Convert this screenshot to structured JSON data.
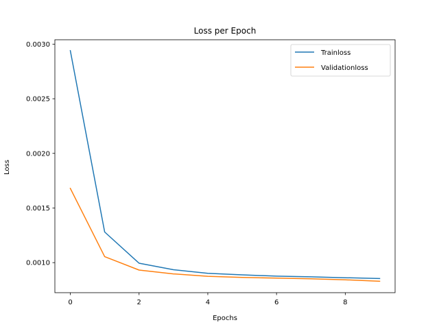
{
  "chart_data": {
    "type": "line",
    "title": "Loss per Epoch",
    "xlabel": "Epochs",
    "ylabel": "Loss",
    "xlim": [
      -0.45,
      9.45
    ],
    "ylim": [
      0.000725,
      0.00304
    ],
    "xticks": [
      0,
      2,
      4,
      6,
      8
    ],
    "xtick_labels": [
      "0",
      "2",
      "4",
      "6",
      "8"
    ],
    "yticks": [
      0.001,
      0.0015,
      0.002,
      0.0025,
      0.003
    ],
    "ytick_labels": [
      "0.0010",
      "0.0015",
      "0.0020",
      "0.0025",
      "0.0030"
    ],
    "x": [
      0,
      1,
      2,
      3,
      4,
      5,
      6,
      7,
      8,
      9
    ],
    "series": [
      {
        "name": "Trainloss",
        "color": "#1f77b4",
        "values": [
          0.00294,
          0.00128,
          0.000995,
          0.000935,
          0.000902,
          0.000888,
          0.000876,
          0.00087,
          0.000862,
          0.000855
        ]
      },
      {
        "name": "Validationloss",
        "color": "#ff7f0e",
        "values": [
          0.00168,
          0.001055,
          0.000932,
          0.000897,
          0.000875,
          0.000865,
          0.000858,
          0.000852,
          0.000843,
          0.000829
        ]
      }
    ],
    "grid": false,
    "legend_position": "top-right"
  }
}
